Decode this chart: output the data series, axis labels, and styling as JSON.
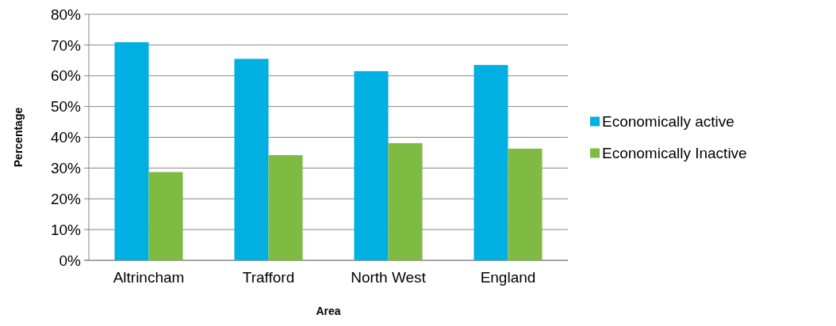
{
  "chart_data": {
    "type": "bar",
    "xlabel": "Area",
    "ylabel": "Percentage",
    "categories": [
      "Altrincham",
      "Trafford",
      "North West",
      "England"
    ],
    "series": [
      {
        "name": "Economically active",
        "color": "#00b0e3",
        "values": [
          70.9,
          65.5,
          61.5,
          63.5
        ]
      },
      {
        "name": "Economically Inactive",
        "color": "#7fba42",
        "values": [
          28.7,
          34.2,
          38.1,
          36.3
        ]
      }
    ],
    "ylim": [
      0,
      80
    ],
    "yticks": [
      {
        "value": 0,
        "label": "0%"
      },
      {
        "value": 10,
        "label": "10%"
      },
      {
        "value": 20,
        "label": "20%"
      },
      {
        "value": 30,
        "label": "30%"
      },
      {
        "value": 40,
        "label": "40%"
      },
      {
        "value": 50,
        "label": "50%"
      },
      {
        "value": 60,
        "label": "60%"
      },
      {
        "value": 70,
        "label": "70%"
      },
      {
        "value": 80,
        "label": "80%"
      }
    ],
    "grid": "y",
    "legend": "right"
  }
}
